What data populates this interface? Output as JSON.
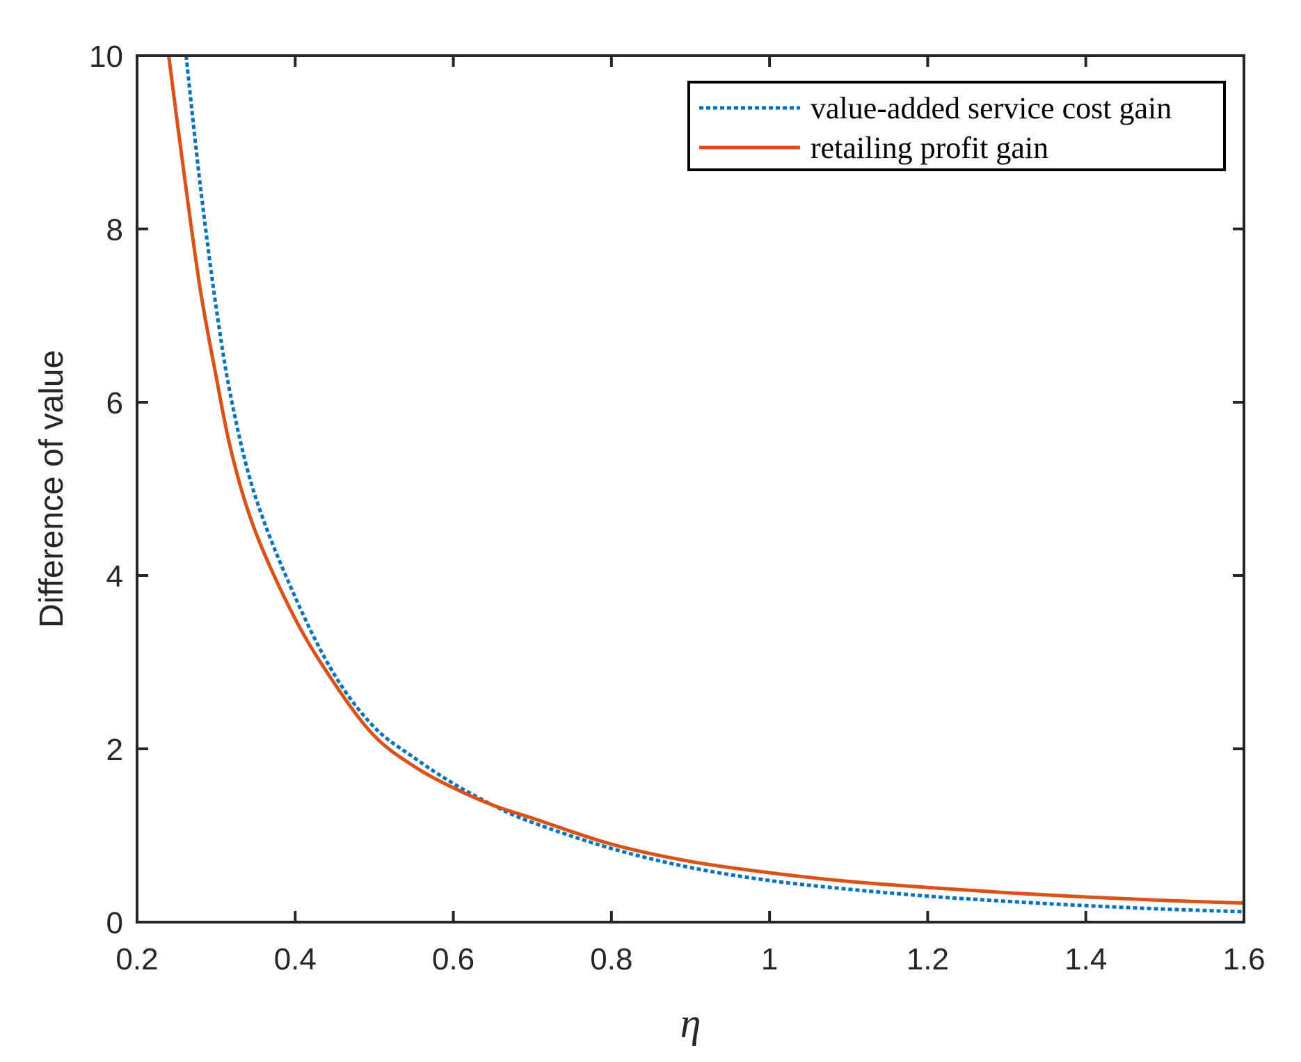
{
  "chart_data": {
    "type": "line",
    "title": "",
    "xlabel": "η",
    "ylabel": "Difference of value",
    "xlim": [
      0.2,
      1.6
    ],
    "ylim": [
      0,
      10
    ],
    "xticks": [
      "0.2",
      "0.4",
      "0.6",
      "0.8",
      "1",
      "1.2",
      "1.4",
      "1.6"
    ],
    "yticks": [
      "0",
      "2",
      "4",
      "6",
      "8",
      "10"
    ],
    "grid": false,
    "legend_position": "top-right",
    "series": [
      {
        "name": "value-added service cost gain",
        "color": "#0072BD",
        "style": "dotted",
        "x": [
          0.262,
          0.28,
          0.3,
          0.32,
          0.35,
          0.4,
          0.45,
          0.5,
          0.55,
          0.6,
          0.65,
          0.7,
          0.8,
          0.9,
          1.0,
          1.1,
          1.2,
          1.3,
          1.4,
          1.5,
          1.6
        ],
        "y": [
          10.0,
          8.5,
          7.1,
          6.0,
          4.9,
          3.75,
          2.85,
          2.25,
          1.9,
          1.6,
          1.35,
          1.15,
          0.85,
          0.63,
          0.48,
          0.38,
          0.3,
          0.24,
          0.19,
          0.15,
          0.12
        ]
      },
      {
        "name": "retailing profit gain",
        "color": "#D95319",
        "style": "solid",
        "x": [
          0.24,
          0.26,
          0.28,
          0.3,
          0.32,
          0.35,
          0.4,
          0.45,
          0.5,
          0.55,
          0.6,
          0.65,
          0.7,
          0.8,
          0.9,
          1.0,
          1.1,
          1.2,
          1.3,
          1.4,
          1.5,
          1.6
        ],
        "y": [
          10.0,
          8.6,
          7.3,
          6.3,
          5.4,
          4.5,
          3.5,
          2.75,
          2.15,
          1.8,
          1.55,
          1.35,
          1.2,
          0.9,
          0.7,
          0.57,
          0.47,
          0.4,
          0.34,
          0.29,
          0.25,
          0.22
        ]
      }
    ]
  }
}
